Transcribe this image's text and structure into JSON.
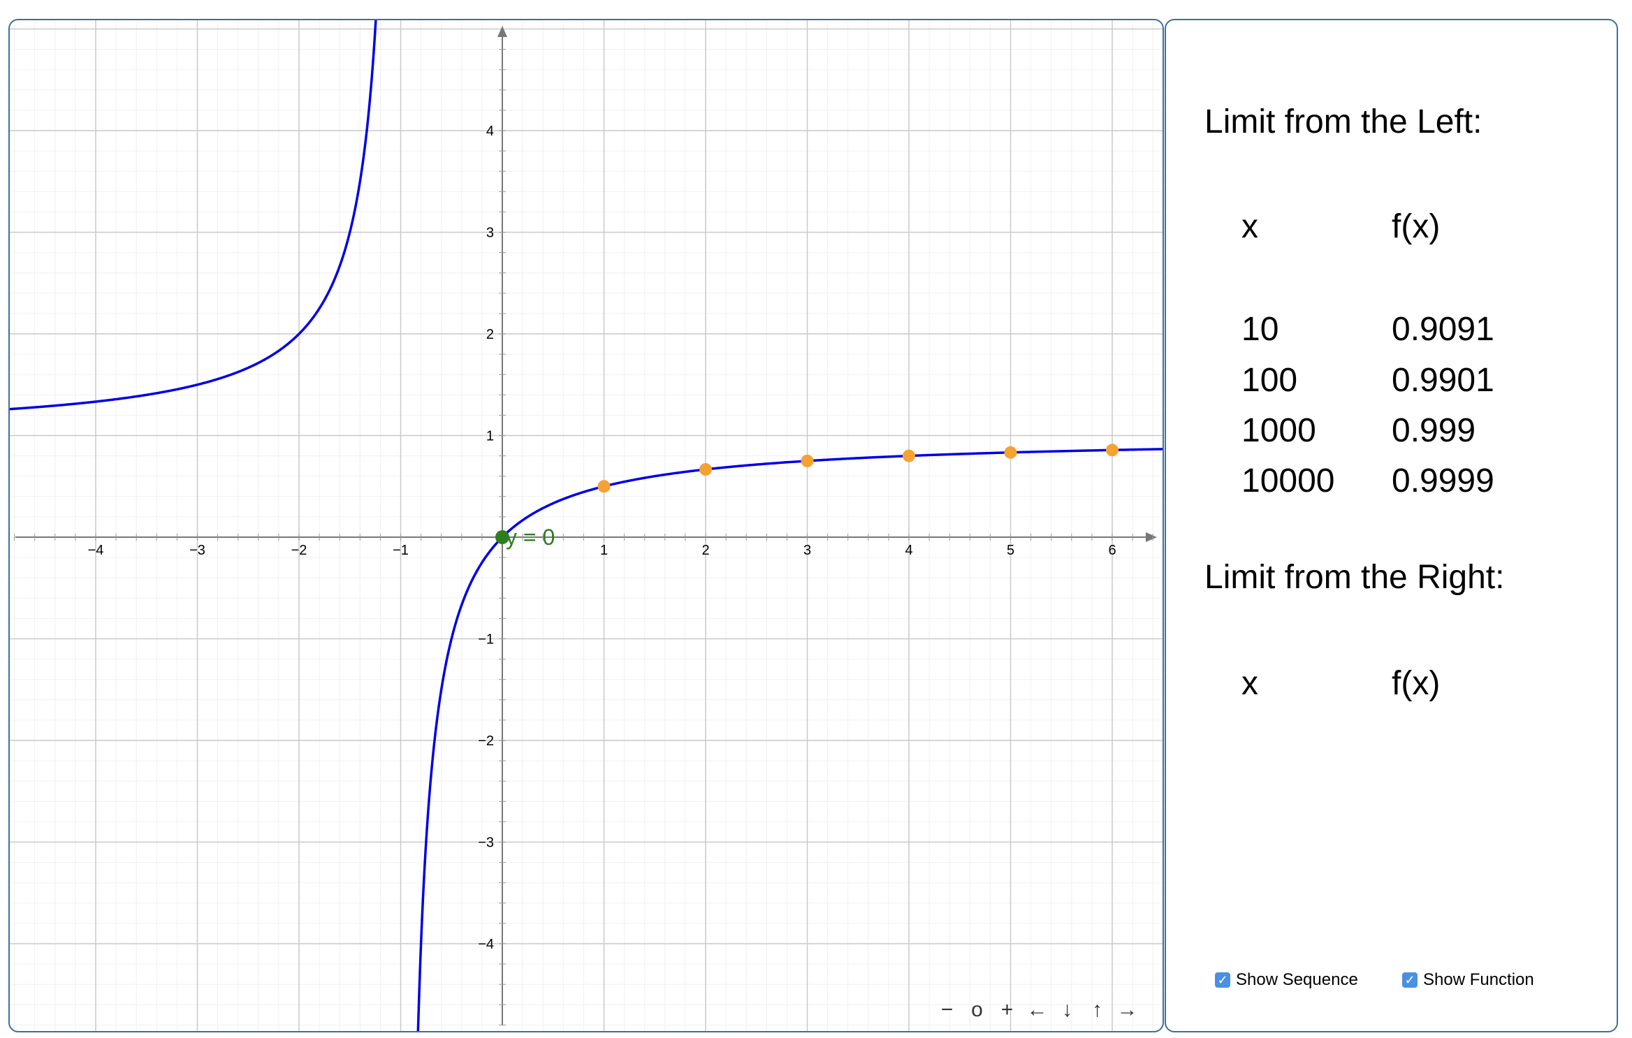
{
  "chart_data": {
    "type": "line",
    "function_label": "y = 0",
    "xlim": [
      -4.85,
      6.55
    ],
    "ylim": [
      -4.85,
      5.0
    ],
    "x_ticks": [
      "−4",
      "−3",
      "−2",
      "−1",
      "1",
      "2",
      "3",
      "4",
      "5",
      "6"
    ],
    "x_tick_values": [
      -4,
      -3,
      -2,
      -1,
      1,
      2,
      3,
      4,
      5,
      6
    ],
    "y_ticks": [
      "4",
      "3",
      "2",
      "1",
      "−1",
      "−2",
      "−3",
      "−4"
    ],
    "y_tick_values": [
      4,
      3,
      2,
      1,
      -1,
      -2,
      -3,
      -4
    ],
    "grid": true,
    "series": [
      {
        "curve": "f(x) = x/(x+1)",
        "color": "#0000e6"
      },
      {
        "points_x": [
          0,
          1,
          2,
          3,
          4,
          5,
          6
        ],
        "points_y": [
          0,
          0.5,
          0.6667,
          0.75,
          0.8,
          0.8333,
          0.8571
        ],
        "color": "#f5a233"
      }
    ],
    "highlight_point": {
      "x": 0,
      "y": 0,
      "color": "#2e7d1f"
    }
  },
  "side_panel": {
    "left_title": "Limit from the Left:",
    "right_title": "Limit from the Right:",
    "col_x": "x",
    "col_fx": "f(x)",
    "left_rows": [
      {
        "x": "10",
        "fx": "0.9091"
      },
      {
        "x": "100",
        "fx": "0.9901"
      },
      {
        "x": "1000",
        "fx": "0.999"
      },
      {
        "x": "10000",
        "fx": "0.9999"
      }
    ],
    "show_sequence_label": "Show Sequence",
    "show_function_label": "Show Function",
    "show_sequence_checked": true,
    "show_function_checked": true
  },
  "zoom_controls": [
    "−",
    "o",
    "+",
    "←",
    "↓",
    "↑",
    "→"
  ]
}
